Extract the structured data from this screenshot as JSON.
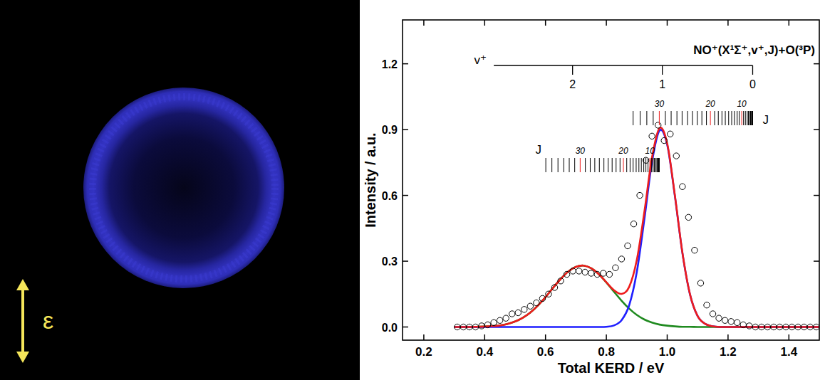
{
  "image": {
    "polarization_label": "ε"
  },
  "chart_data": {
    "type": "line",
    "x_label": "Total KERD / eV",
    "y_label": "Intensity / a.u.",
    "xlim": [
      0.13,
      1.5
    ],
    "ylim": [
      -0.06,
      1.4
    ],
    "xticks": [
      0.2,
      0.4,
      0.6,
      0.8,
      {
        "value": 1,
        "label": "1.0"
      },
      1.2,
      1.4
    ],
    "yticks": [
      {
        "value": 0,
        "label": "0.0"
      },
      0.3,
      0.6,
      0.9,
      1.2
    ],
    "series": [
      {
        "type": "scatter",
        "marker": "circle",
        "color": "#000000",
        "x": [
          0.31,
          0.33,
          0.35,
          0.37,
          0.39,
          0.41,
          0.43,
          0.45,
          0.47,
          0.49,
          0.51,
          0.53,
          0.55,
          0.57,
          0.59,
          0.61,
          0.63,
          0.65,
          0.67,
          0.69,
          0.71,
          0.73,
          0.75,
          0.77,
          0.79,
          0.81,
          0.83,
          0.85,
          0.87,
          0.89,
          0.91,
          0.93,
          0.95,
          0.97,
          0.99,
          1.01,
          1.03,
          1.05,
          1.07,
          1.09,
          1.11,
          1.13,
          1.15,
          1.17,
          1.19,
          1.21,
          1.23,
          1.25,
          1.27,
          1.29,
          1.31,
          1.33,
          1.35,
          1.37,
          1.39,
          1.41,
          1.43,
          1.45,
          1.47,
          1.49
        ],
        "values": [
          0,
          0,
          0,
          0,
          0.005,
          0.01,
          0.02,
          0.03,
          0.04,
          0.06,
          0.065,
          0.08,
          0.095,
          0.11,
          0.13,
          0.15,
          0.18,
          0.21,
          0.24,
          0.255,
          0.255,
          0.25,
          0.245,
          0.24,
          0.245,
          0.24,
          0.27,
          0.31,
          0.37,
          0.47,
          0.6,
          0.76,
          0.87,
          0.92,
          0.85,
          0.88,
          0.78,
          0.64,
          0.5,
          0.35,
          0.2,
          0.1,
          0.06,
          0.04,
          0.03,
          0.025,
          0.02,
          0.01,
          0.005,
          0,
          0,
          0,
          0,
          0,
          0,
          0,
          0,
          0,
          0,
          0
        ]
      },
      {
        "type": "line",
        "color": "#1f8a1f",
        "x": [
          0.3,
          0.325,
          0.35,
          0.375,
          0.4,
          0.425,
          0.45,
          0.475,
          0.5,
          0.525,
          0.55,
          0.575,
          0.6,
          0.625,
          0.65,
          0.675,
          0.7,
          0.725,
          0.75,
          0.775,
          0.8,
          0.825,
          0.85,
          0.875,
          0.9,
          0.925,
          0.95,
          0.975,
          1.0,
          1.025,
          1.05,
          1.075,
          1.1,
          1.125,
          1.15,
          1.175,
          1.2,
          1.225,
          1.25,
          1.275,
          1.3,
          1.325,
          1.35,
          1.375,
          1.4,
          1.425,
          1.45,
          1.475,
          1.5
        ],
        "values": [
          0,
          0,
          0,
          0.001,
          0.002,
          0.004,
          0.007,
          0.014,
          0.025,
          0.042,
          0.066,
          0.098,
          0.136,
          0.179,
          0.219,
          0.253,
          0.274,
          0.28,
          0.268,
          0.241,
          0.203,
          0.161,
          0.12,
          0.084,
          0.055,
          0.034,
          0.02,
          0.011,
          0.006,
          0.003,
          0.001,
          0.001,
          0,
          0,
          0,
          0,
          0,
          0,
          0,
          0,
          0,
          0,
          0,
          0,
          0,
          0,
          0,
          0,
          0
        ]
      },
      {
        "type": "line",
        "color": "#1f1fff",
        "x": [
          0.3,
          0.325,
          0.35,
          0.375,
          0.4,
          0.425,
          0.45,
          0.475,
          0.5,
          0.525,
          0.55,
          0.575,
          0.6,
          0.625,
          0.65,
          0.675,
          0.7,
          0.725,
          0.75,
          0.775,
          0.8,
          0.825,
          0.85,
          0.875,
          0.9,
          0.925,
          0.95,
          0.975,
          1.0,
          1.025,
          1.05,
          1.075,
          1.1,
          1.125,
          1.15,
          1.175,
          1.2,
          1.225,
          1.25,
          1.275,
          1.3,
          1.325,
          1.35,
          1.375,
          1.4,
          1.425,
          1.45,
          1.475,
          1.5
        ],
        "values": [
          0,
          0,
          0,
          0,
          0,
          0,
          0,
          0,
          0,
          0,
          0,
          0,
          0,
          0,
          0,
          0,
          0,
          0,
          0,
          0,
          0.001,
          0.007,
          0.031,
          0.099,
          0.25,
          0.491,
          0.752,
          0.896,
          0.831,
          0.6,
          0.338,
          0.148,
          0.05,
          0.014,
          0.003,
          0,
          0,
          0,
          0,
          0,
          0,
          0,
          0,
          0,
          0,
          0,
          0,
          0,
          0
        ]
      },
      {
        "type": "line",
        "color": "#ee1c1c",
        "x": [
          0.3,
          0.325,
          0.35,
          0.375,
          0.4,
          0.425,
          0.45,
          0.475,
          0.5,
          0.525,
          0.55,
          0.575,
          0.6,
          0.625,
          0.65,
          0.675,
          0.7,
          0.725,
          0.75,
          0.775,
          0.8,
          0.825,
          0.85,
          0.875,
          0.9,
          0.925,
          0.95,
          0.975,
          1.0,
          1.025,
          1.05,
          1.075,
          1.1,
          1.125,
          1.15,
          1.175,
          1.2,
          1.225,
          1.25,
          1.275,
          1.3,
          1.325,
          1.35,
          1.375,
          1.4,
          1.425,
          1.45,
          1.475,
          1.5
        ],
        "values": [
          0,
          0,
          0,
          0.001,
          0.002,
          0.004,
          0.007,
          0.014,
          0.025,
          0.042,
          0.066,
          0.098,
          0.136,
          0.179,
          0.219,
          0.253,
          0.274,
          0.28,
          0.268,
          0.241,
          0.204,
          0.168,
          0.151,
          0.183,
          0.305,
          0.525,
          0.772,
          0.907,
          0.837,
          0.603,
          0.339,
          0.149,
          0.05,
          0.014,
          0.003,
          0,
          0,
          0,
          0,
          0,
          0,
          0,
          0,
          0,
          0,
          0,
          0,
          0,
          0
        ]
      }
    ],
    "annotations": {
      "title": "NO⁺(X¹Σ⁺,v⁺,J)+O(³P)",
      "v_axis": {
        "label": "v⁺",
        "range": [
          0.43,
          1.281
        ],
        "ticks": [
          {
            "value": 1.281,
            "label": "0"
          },
          {
            "value": 0.984,
            "label": "1"
          },
          {
            "value": 0.689,
            "label": "2"
          }
        ]
      },
      "ladders": [
        {
          "label": "J",
          "lines": [
            1.281,
            1.28,
            1.279,
            1.277,
            1.274,
            1.271,
            1.267,
            1.263,
            1.257,
            1.251,
            1.245,
            1.237,
            1.23,
            1.221,
            1.212,
            1.202,
            1.191,
            1.18,
            1.168,
            1.156,
            1.142,
            1.129,
            1.114,
            1.099,
            1.083,
            1.067,
            1.049,
            1.032,
            1.013,
            0.994,
            0.974,
            0.954,
            0.933,
            0.911,
            0.888
          ],
          "labels": [
            {
              "value": 1.245,
              "label": "10"
            },
            {
              "value": 1.142,
              "label": "20"
            },
            {
              "value": 0.974,
              "label": "30"
            }
          ]
        },
        {
          "label": "J",
          "lines": [
            0.974,
            0.973,
            0.972,
            0.97,
            0.968,
            0.966,
            0.962,
            0.958,
            0.954,
            0.949,
            0.943,
            0.937,
            0.93,
            0.923,
            0.915,
            0.907,
            0.898,
            0.888,
            0.878,
            0.867,
            0.856,
            0.845,
            0.832,
            0.819,
            0.806,
            0.792,
            0.777,
            0.762,
            0.747,
            0.731,
            0.714,
            0.696,
            0.678,
            0.66,
            0.641,
            0.621,
            0.601
          ],
          "labels": [
            {
              "value": 0.943,
              "label": "10"
            },
            {
              "value": 0.856,
              "label": "20"
            },
            {
              "value": 0.714,
              "label": "30"
            }
          ]
        }
      ]
    }
  }
}
